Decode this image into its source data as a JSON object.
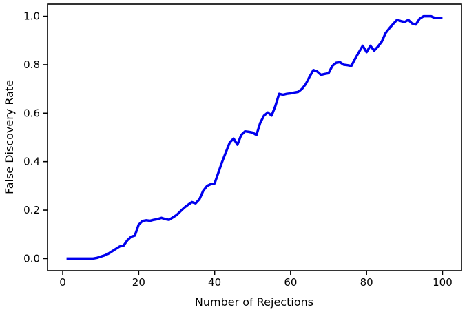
{
  "figure": {
    "background": "#ffffff",
    "axis_color": "#000000",
    "line_color": "#0000ee",
    "line_width": 3.5
  },
  "chart_data": {
    "type": "line",
    "title": "",
    "xlabel": "Number of Rejections",
    "ylabel": "False Discovery Rate",
    "grid": false,
    "legend": null,
    "xlim": [
      -4,
      105
    ],
    "ylim": [
      -0.05,
      1.05
    ],
    "x_ticks": [
      0,
      20,
      40,
      60,
      80,
      100
    ],
    "x_tick_labels": [
      "0",
      "20",
      "40",
      "60",
      "80",
      "100"
    ],
    "y_ticks": [
      0.0,
      0.2,
      0.4,
      0.6,
      0.8,
      1.0
    ],
    "y_tick_labels": [
      "0.0",
      "0.2",
      "0.4",
      "0.6",
      "0.8",
      "1.0"
    ],
    "series": [
      {
        "name": "False Discovery Rate",
        "color": "#0000ee",
        "x_start": 1,
        "x_step": 1,
        "y": [
          0.0,
          0.0,
          0.0,
          0.0,
          0.0,
          0.0,
          0.0,
          0.0,
          0.003,
          0.008,
          0.013,
          0.02,
          0.03,
          0.04,
          0.05,
          0.053,
          0.075,
          0.09,
          0.095,
          0.14,
          0.155,
          0.158,
          0.156,
          0.16,
          0.163,
          0.168,
          0.163,
          0.16,
          0.17,
          0.18,
          0.195,
          0.21,
          0.222,
          0.233,
          0.228,
          0.245,
          0.28,
          0.3,
          0.307,
          0.31,
          0.355,
          0.4,
          0.44,
          0.48,
          0.495,
          0.47,
          0.51,
          0.525,
          0.523,
          0.52,
          0.51,
          0.56,
          0.59,
          0.603,
          0.59,
          0.63,
          0.68,
          0.676,
          0.68,
          0.682,
          0.685,
          0.688,
          0.7,
          0.72,
          0.75,
          0.778,
          0.772,
          0.758,
          0.762,
          0.765,
          0.795,
          0.808,
          0.81,
          0.8,
          0.798,
          0.795,
          0.825,
          0.852,
          0.878,
          0.852,
          0.878,
          0.858,
          0.875,
          0.895,
          0.93,
          0.95,
          0.968,
          0.985,
          0.98,
          0.976,
          0.985,
          0.97,
          0.966,
          0.99,
          1.0,
          1.0,
          1.0,
          0.993,
          0.993,
          0.993
        ]
      }
    ]
  }
}
